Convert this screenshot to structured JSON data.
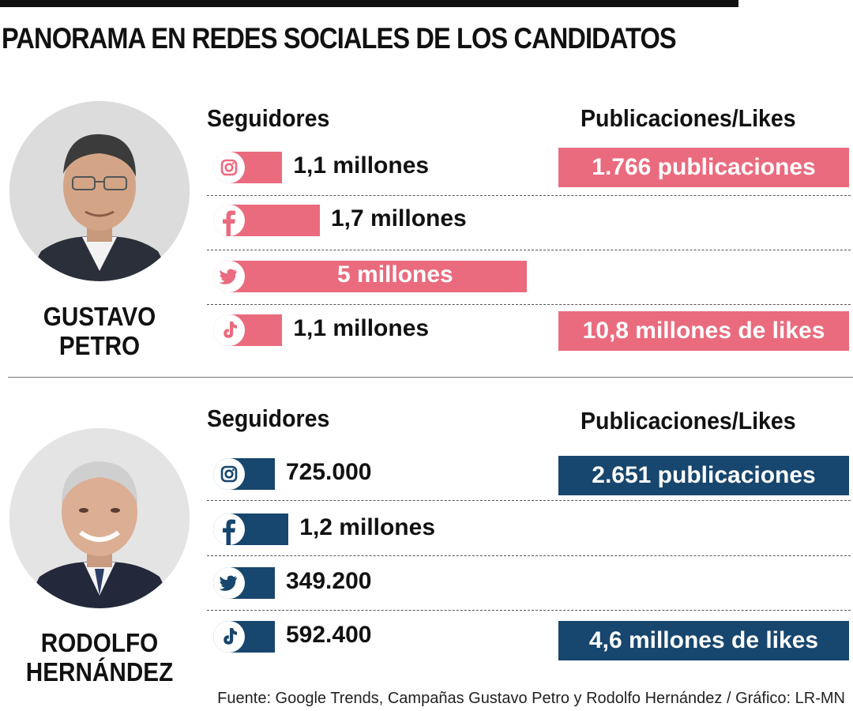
{
  "title": "PANORAMA EN REDES SOCIALES DE LOS CANDIDATOS",
  "source": "Fuente: Google Trends, Campañas Gustavo Petro y Rodolfo Hernández / Gráfico: LR-MN",
  "colors": {
    "petro": "#ea6b7e",
    "rodolfo": "#17466e"
  },
  "chart_data": [
    {
      "type": "bar",
      "orientation": "horizontal",
      "candidate": "GUSTAVO PETRO",
      "name_lines": [
        "GUSTAVO",
        "PETRO"
      ],
      "followers_header": "Seguidores",
      "stats_header": "Publicaciones/Likes",
      "categories": [
        "instagram",
        "facebook",
        "twitter",
        "tiktok"
      ],
      "values": [
        1100000,
        1700000,
        5000000,
        1100000
      ],
      "value_labels": [
        "1,1 millones",
        "1,7 millones",
        "5 millones",
        "1,1 millones"
      ],
      "stats": [
        "1.766 publicaciones",
        "",
        "",
        "10,8 millones de likes"
      ]
    },
    {
      "type": "bar",
      "orientation": "horizontal",
      "candidate": "RODOLFO HERNÁNDEZ",
      "name_lines": [
        "RODOLFO",
        "HERNÁNDEZ"
      ],
      "followers_header": "Seguidores",
      "stats_header": "Publicaciones/Likes",
      "categories": [
        "instagram",
        "facebook",
        "twitter",
        "tiktok"
      ],
      "values": [
        725000,
        1200000,
        349200,
        592400
      ],
      "value_labels": [
        "725.000",
        "1,2 millones",
        "349.200",
        "592.400"
      ],
      "stats": [
        "2.651 publicaciones",
        "",
        "",
        "4,6 millones de likes"
      ]
    }
  ]
}
